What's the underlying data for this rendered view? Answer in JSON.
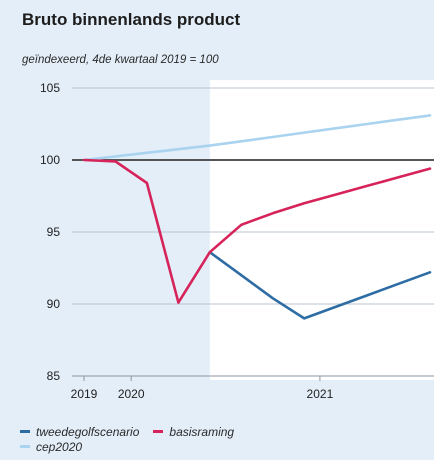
{
  "chart_data": {
    "type": "line",
    "title": "Bruto binnenlands product",
    "subtitle": "geïndexeerd, 4de kwartaal 2019 = 100",
    "xlabel": "",
    "ylabel": "",
    "ylim": [
      85,
      105
    ],
    "yticks": [
      85,
      90,
      95,
      100,
      105
    ],
    "xticks": [
      {
        "label": "2019",
        "q": 0
      },
      {
        "label": "2020",
        "q": 1.5
      },
      {
        "label": "2021",
        "q": 7.5
      }
    ],
    "xlim": [
      0,
      11
    ],
    "reference_line": 100,
    "forecast_shade_from_q": 4,
    "grid": true,
    "legend_position": "bottom-left",
    "series": [
      {
        "name": "cep2020",
        "color": "#a9d3ef",
        "points": [
          [
            0,
            100
          ],
          [
            1,
            100.25
          ],
          [
            2,
            100.5
          ],
          [
            3,
            100.75
          ],
          [
            4,
            101.0
          ],
          [
            5,
            101.3
          ],
          [
            6,
            101.6
          ],
          [
            7,
            101.9
          ],
          [
            8,
            102.2
          ],
          [
            9,
            102.5
          ],
          [
            10,
            102.8
          ],
          [
            11,
            103.1
          ]
        ]
      },
      {
        "name": "tweedegolfscenario",
        "color": "#2e6da4",
        "points": [
          [
            4,
            93.6
          ],
          [
            5,
            92.0
          ],
          [
            6,
            90.4
          ],
          [
            7,
            89.0
          ],
          [
            8,
            89.8
          ],
          [
            9,
            90.6
          ],
          [
            10,
            91.4
          ],
          [
            11,
            92.2
          ]
        ]
      },
      {
        "name": "basisraming",
        "color": "#d6245a",
        "points": [
          [
            0,
            100
          ],
          [
            1,
            99.9
          ],
          [
            2,
            98.4
          ],
          [
            3,
            90.1
          ],
          [
            4,
            93.6
          ],
          [
            5,
            95.5
          ],
          [
            6,
            96.3
          ],
          [
            7,
            97.0
          ],
          [
            8,
            97.6
          ],
          [
            9,
            98.2
          ],
          [
            10,
            98.8
          ],
          [
            11,
            99.4
          ]
        ]
      }
    ]
  },
  "legend": {
    "row1": [
      "tweedegolfscenario",
      "basisraming"
    ],
    "row2": [
      "cep2020"
    ]
  }
}
